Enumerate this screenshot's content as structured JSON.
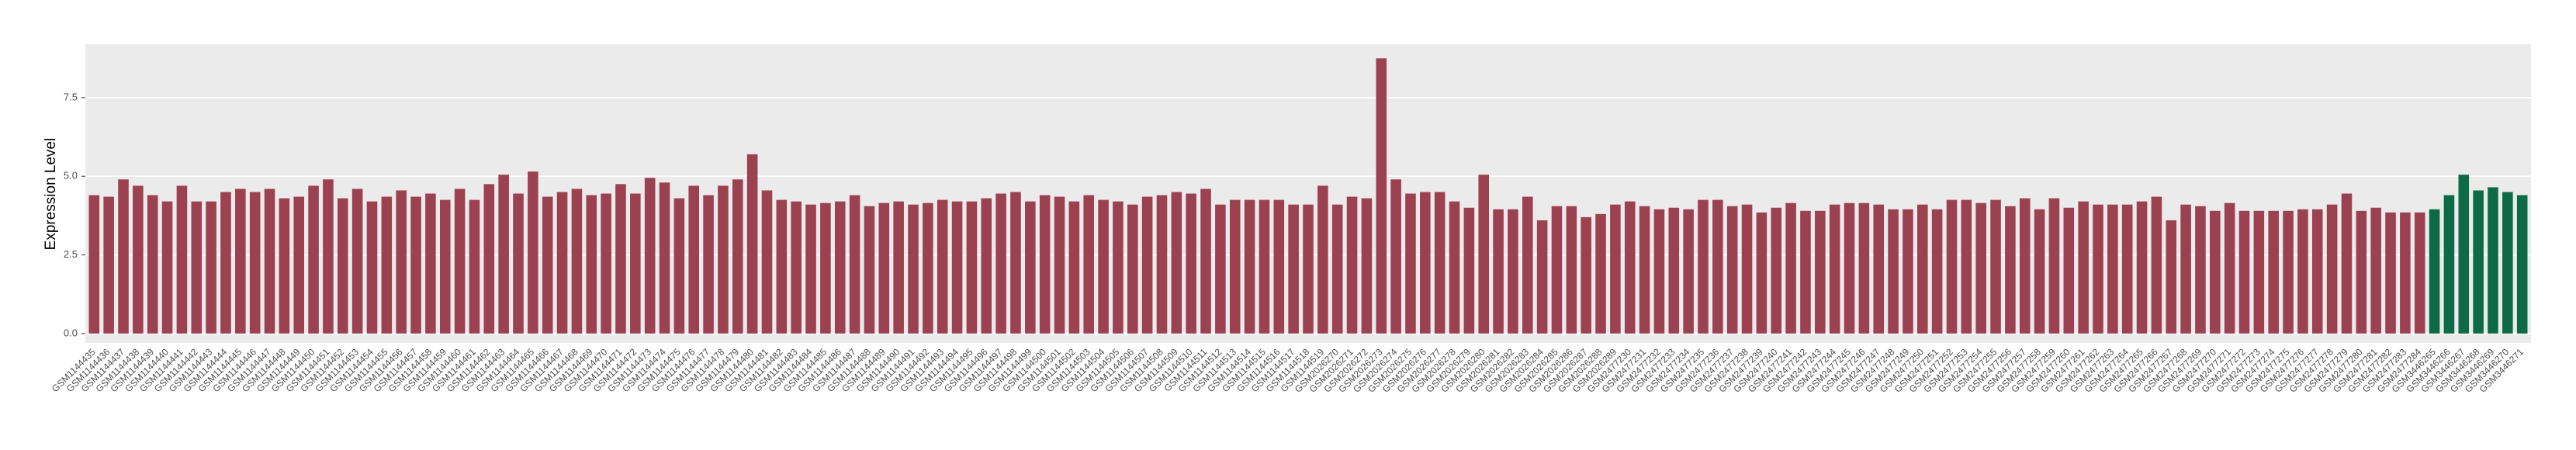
{
  "chart_data": {
    "type": "bar",
    "ylabel": "Expression Level",
    "ylim": [
      -0.3,
      9.2
    ],
    "yticks": [
      {
        "value": 0,
        "label": "0.0"
      },
      2.5,
      {
        "value": 5,
        "label": "5.0"
      },
      7.5
    ],
    "grid": true,
    "series": [
      {
        "color": "#9c4150",
        "categories": [
          "GSM1144435",
          "GSM1144436",
          "GSM1144437",
          "GSM1144438",
          "GSM1144439",
          "GSM1144440",
          "GSM1144441",
          "GSM1144442",
          "GSM1144443",
          "GSM1144444",
          "GSM1144445",
          "GSM1144446",
          "GSM1144447",
          "GSM1144448",
          "GSM1144449",
          "GSM1144450",
          "GSM1144451",
          "GSM1144452",
          "GSM1144453",
          "GSM1144454",
          "GSM1144455",
          "GSM1144456",
          "GSM1144457",
          "GSM1144458",
          "GSM1144459",
          "GSM1144460",
          "GSM1144461",
          "GSM1144462",
          "GSM1144463",
          "GSM1144464",
          "GSM1144465",
          "GSM1144466",
          "GSM1144467",
          "GSM1144468",
          "GSM1144469",
          "GSM1144470",
          "GSM1144471",
          "GSM1144472",
          "GSM1144473",
          "GSM1144474",
          "GSM1144475",
          "GSM1144476",
          "GSM1144477",
          "GSM1144478",
          "GSM1144479",
          "GSM1144480",
          "GSM1144481",
          "GSM1144482",
          "GSM1144483",
          "GSM1144484",
          "GSM1144485",
          "GSM1144486",
          "GSM1144487",
          "GSM1144488",
          "GSM1144489",
          "GSM1144490",
          "GSM1144491",
          "GSM1144492",
          "GSM1144493",
          "GSM1144494",
          "GSM1144495",
          "GSM1144496",
          "GSM1144497",
          "GSM1144498",
          "GSM1144499",
          "GSM1144500",
          "GSM1144501",
          "GSM1144502",
          "GSM1144503",
          "GSM1144504",
          "GSM1144505",
          "GSM1144506",
          "GSM1144507",
          "GSM1144508",
          "GSM1144509",
          "GSM1144510",
          "GSM1144511",
          "GSM1144512",
          "GSM1144513",
          "GSM1144514",
          "GSM1144515",
          "GSM1144516",
          "GSM1144517",
          "GSM1144518",
          "GSM1144519",
          "GSM2026270",
          "GSM2026271",
          "GSM2026272",
          "GSM2026273",
          "GSM2026274",
          "GSM2026275",
          "GSM2026276",
          "GSM2026277",
          "GSM2026278",
          "GSM2026279",
          "GSM2026280",
          "GSM2026281",
          "GSM2026282",
          "GSM2026283",
          "GSM2026284",
          "GSM2026285",
          "GSM2026286",
          "GSM2026287",
          "GSM2026288",
          "GSM2026289",
          "GSM2477230",
          "GSM2477231",
          "GSM2477232",
          "GSM2477233",
          "GSM2477234",
          "GSM2477235",
          "GSM2477236",
          "GSM2477237",
          "GSM2477238",
          "GSM2477239",
          "GSM2477240",
          "GSM2477241",
          "GSM2477242",
          "GSM2477243",
          "GSM2477244",
          "GSM2477245",
          "GSM2477246",
          "GSM2477247",
          "GSM2477248",
          "GSM2477249",
          "GSM2477250",
          "GSM2477251",
          "GSM2477252",
          "GSM2477253",
          "GSM2477254",
          "GSM2477255",
          "GSM2477256",
          "GSM2477257",
          "GSM2477258",
          "GSM2477259",
          "GSM2477260",
          "GSM2477261",
          "GSM2477262",
          "GSM2477263",
          "GSM2477264",
          "GSM2477265",
          "GSM2477266",
          "GSM2477267",
          "GSM2477268",
          "GSM2477269",
          "GSM2477270",
          "GSM2477271",
          "GSM2477272",
          "GSM2477273",
          "GSM2477274",
          "GSM2477275",
          "GSM2477276",
          "GSM2477277",
          "GSM2477278",
          "GSM2477279",
          "GSM2477280",
          "GSM2477281",
          "GSM2477282",
          "GSM2477283",
          "GSM2477284"
        ],
        "values": [
          4.4,
          4.35,
          4.9,
          4.7,
          4.4,
          4.2,
          4.7,
          4.2,
          4.2,
          4.5,
          4.6,
          4.5,
          4.6,
          4.3,
          4.35,
          4.7,
          4.9,
          4.3,
          4.6,
          4.2,
          4.35,
          4.55,
          4.35,
          4.45,
          4.25,
          4.6,
          4.25,
          4.75,
          5.05,
          4.45,
          5.15,
          4.35,
          4.5,
          4.6,
          4.4,
          4.45,
          4.75,
          4.45,
          4.95,
          4.8,
          4.3,
          4.7,
          4.4,
          4.7,
          4.9,
          5.7,
          4.55,
          4.25,
          4.2,
          4.1,
          4.15,
          4.2,
          4.4,
          4.05,
          4.15,
          4.2,
          4.1,
          4.15,
          4.25,
          4.2,
          4.2,
          4.3,
          4.45,
          4.5,
          4.2,
          4.4,
          4.35,
          4.2,
          4.4,
          4.25,
          4.2,
          4.1,
          4.35,
          4.4,
          4.5,
          4.45,
          4.6,
          4.1,
          4.25,
          4.25,
          4.25,
          4.25,
          4.1,
          4.1,
          4.7,
          4.1,
          4.35,
          4.3,
          8.75,
          4.9,
          4.45,
          4.5,
          4.5,
          4.2,
          4.0,
          5.05,
          3.95,
          3.95,
          4.35,
          3.6,
          4.05,
          4.05,
          3.7,
          3.8,
          4.1,
          4.2,
          4.05,
          3.95,
          4.0,
          3.95,
          4.25,
          4.25,
          4.05,
          4.1,
          3.85,
          4.0,
          4.15,
          3.9,
          3.9,
          4.1,
          4.15,
          4.15,
          4.1,
          3.95,
          3.95,
          4.1,
          3.95,
          4.25,
          4.25,
          4.15,
          4.25,
          4.05,
          4.3,
          3.95,
          4.3,
          4.0,
          4.2,
          4.1,
          4.1,
          4.1,
          4.2,
          4.35,
          3.6,
          4.1,
          4.05,
          3.9,
          4.15,
          3.9,
          3.9,
          3.9,
          3.9,
          3.95,
          3.95,
          4.1,
          4.45,
          3.9,
          4.0,
          3.85,
          3.85,
          3.85
        ]
      },
      {
        "color": "#0d6a47",
        "categories": [
          "GSM3446265",
          "GSM3446266",
          "GSM3446267",
          "GSM3446268",
          "GSM3446269",
          "GSM3446270",
          "GSM3446271"
        ],
        "values": [
          3.95,
          4.4,
          5.05,
          4.55,
          4.65,
          4.5,
          4.4
        ]
      }
    ]
  }
}
